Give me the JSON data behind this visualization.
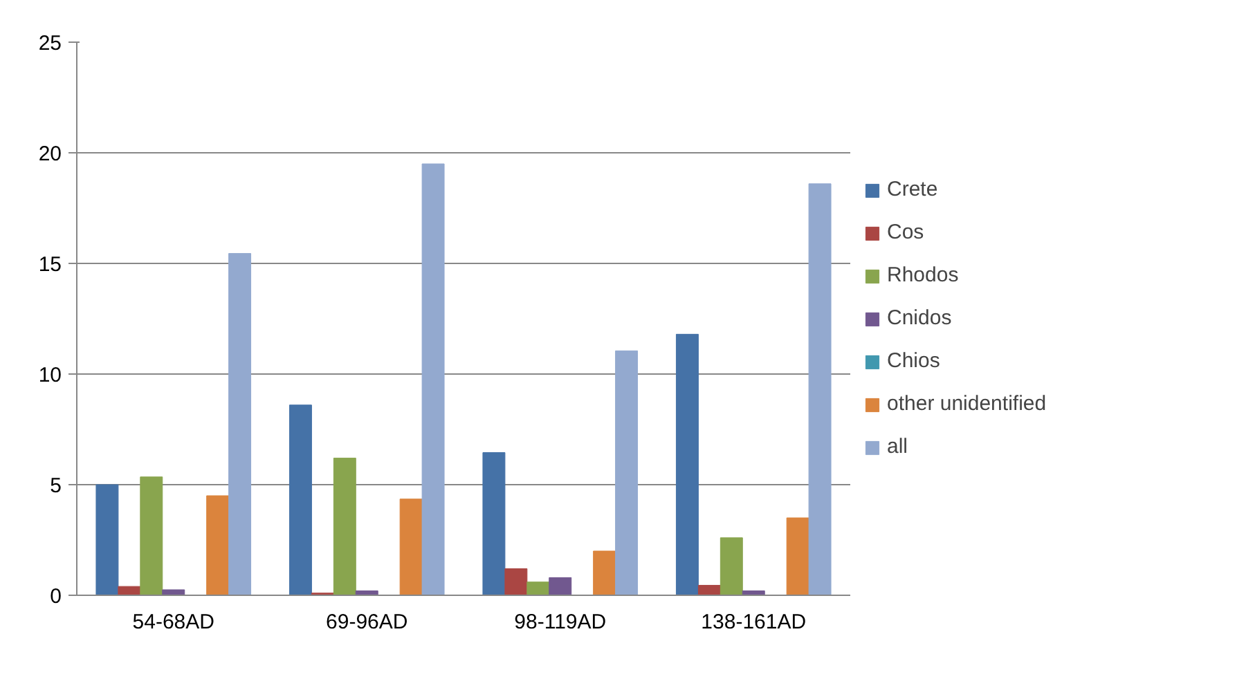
{
  "chart_data": {
    "type": "bar",
    "categories": [
      "54-68AD",
      "69-96AD",
      "98-119AD",
      "138-161AD"
    ],
    "series": [
      {
        "name": "Crete",
        "color": "#4572a7",
        "values": [
          5.0,
          8.6,
          6.45,
          11.8
        ]
      },
      {
        "name": "Cos",
        "color": "#aa4643",
        "values": [
          0.4,
          0.1,
          1.2,
          0.45
        ]
      },
      {
        "name": "Rhodos",
        "color": "#89a54e",
        "values": [
          5.35,
          6.2,
          0.6,
          2.6
        ]
      },
      {
        "name": "Cnidos",
        "color": "#71588f",
        "values": [
          0.25,
          0.2,
          0.8,
          0.2
        ]
      },
      {
        "name": "Chios",
        "color": "#4198af",
        "values": [
          0,
          0,
          0,
          0
        ]
      },
      {
        "name": "other unidentified",
        "color": "#db843d",
        "values": [
          4.5,
          4.35,
          2.0,
          3.5
        ]
      },
      {
        "name": "all",
        "color": "#93a9cf",
        "values": [
          15.45,
          19.5,
          11.05,
          18.6
        ]
      }
    ],
    "ylim": [
      0,
      25
    ],
    "yticks": [
      0,
      5,
      10,
      15,
      20,
      25
    ],
    "grid": "y",
    "legend": "right"
  }
}
